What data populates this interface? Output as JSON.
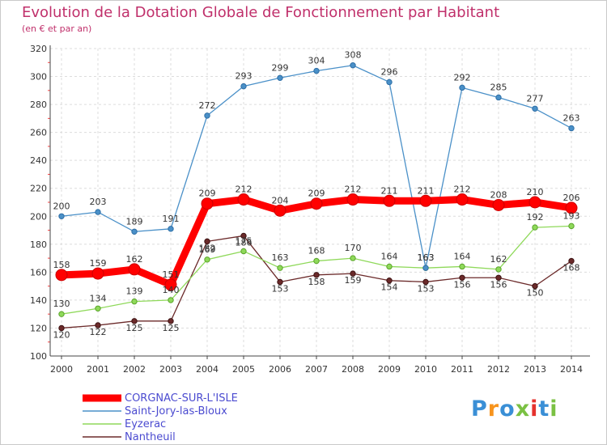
{
  "title": "Evolution de la Dotation Globale de Fonctionnement par Habitant",
  "subtitle": "(en € et par an)",
  "logo": {
    "text": "Proxiti",
    "colors": [
      "#3a8fd6",
      "#f7941d",
      "#3a8fd6",
      "#7bc143",
      "#e5322e",
      "#3a8fd6",
      "#7bc143"
    ]
  },
  "chart_data": {
    "type": "line",
    "categories": [
      "2000",
      "2001",
      "2002",
      "2003",
      "2004",
      "2005",
      "2006",
      "2007",
      "2008",
      "2009",
      "2010",
      "2011",
      "2012",
      "2013",
      "2014"
    ],
    "ylim": [
      100,
      320
    ],
    "yticks": [
      100,
      120,
      140,
      160,
      180,
      200,
      220,
      240,
      260,
      280,
      300,
      320
    ],
    "grid": true,
    "legend_position": "bottom-left",
    "series": [
      {
        "name": "CORGNAC-SUR-L'ISLE",
        "color": "#ff0000",
        "values": [
          158,
          159,
          162,
          151,
          209,
          212,
          204,
          209,
          212,
          211,
          211,
          212,
          208,
          210,
          206
        ],
        "labels": [
          "158",
          "159",
          "162",
          "151",
          "209",
          "212",
          "204",
          "209",
          "212",
          "211",
          "211",
          "212",
          "208",
          "210",
          "206"
        ]
      },
      {
        "name": "Saint-Jory-las-Bloux",
        "color": "#4a90c8",
        "values": [
          200,
          203,
          189,
          191,
          272,
          293,
          299,
          304,
          308,
          296,
          163,
          292,
          285,
          277,
          263
        ],
        "labels": [
          "200",
          "203",
          "189",
          "191",
          "272",
          "293",
          "299",
          "304",
          "308",
          "296",
          "163",
          "292",
          "285",
          "277",
          "263"
        ]
      },
      {
        "name": "Eyzerac",
        "color": "#8fd95a",
        "values": [
          130,
          134,
          139,
          140,
          169,
          175,
          163,
          168,
          170,
          164,
          163,
          164,
          162,
          192,
          193
        ],
        "labels": [
          "130",
          "134",
          "139",
          "140",
          "169",
          "175",
          "163",
          "168",
          "170",
          "164",
          "163",
          "164",
          "162",
          "192",
          "193"
        ]
      },
      {
        "name": "Nantheuil",
        "color": "#6b2a2a",
        "values": [
          120,
          122,
          125,
          125,
          182,
          186,
          153,
          158,
          159,
          154,
          153,
          156,
          156,
          150,
          168
        ],
        "labels": [
          "120",
          "122",
          "125",
          "125",
          "182",
          "186",
          "153",
          "158",
          "159",
          "154",
          "153",
          "156",
          "156",
          "150",
          "168"
        ]
      }
    ]
  }
}
